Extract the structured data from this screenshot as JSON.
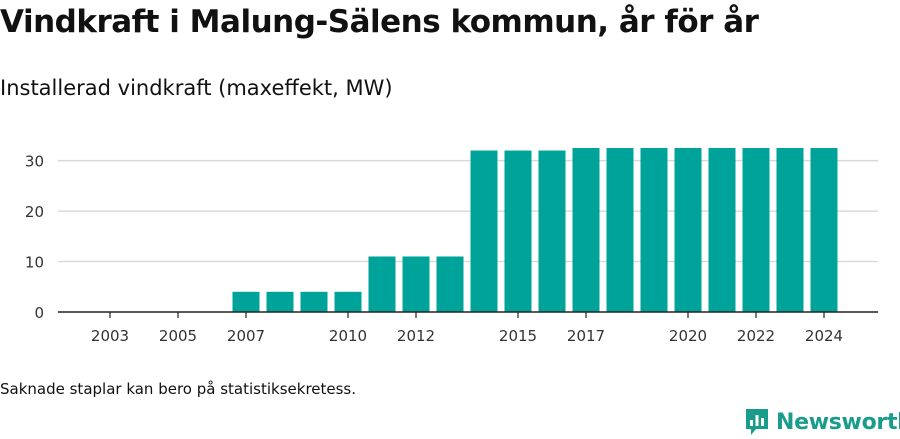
{
  "title": "Vindkraft i Malung-Sälens kommun, år för år",
  "subtitle": "Installerad vindkraft (maxeffekt, MW)",
  "footnote": "Saknade staplar kan bero på statistiksekretess.",
  "brand": "Newsworthy",
  "colors": {
    "bar": "#00a39a",
    "brand": "#1a9c8c",
    "grid": "#d9d9d9"
  },
  "chart_data": {
    "type": "bar",
    "title": "Vindkraft i Malung-Sälens kommun, år för år",
    "ylabel": "Installerad vindkraft (maxeffekt, MW)",
    "xlabel": "",
    "ylim": [
      0,
      32.5
    ],
    "yticks": [
      0,
      10,
      20,
      30
    ],
    "categories": [
      "2003",
      "2004",
      "2005",
      "2006",
      "2007",
      "2008",
      "2009",
      "2010",
      "2011",
      "2012",
      "2013",
      "2014",
      "2015",
      "2016",
      "2017",
      "2018",
      "2019",
      "2020",
      "2021",
      "2022",
      "2023",
      "2024"
    ],
    "values": [
      0,
      0,
      0,
      0,
      4,
      4,
      4,
      4,
      11,
      11,
      11,
      32,
      32,
      32,
      32.5,
      32.5,
      32.5,
      32.5,
      32.5,
      32.5,
      32.5,
      32.5
    ],
    "xtick_labels": [
      "2003",
      "2005",
      "2007",
      "2010",
      "2012",
      "2015",
      "2017",
      "2020",
      "2022",
      "2024"
    ]
  }
}
